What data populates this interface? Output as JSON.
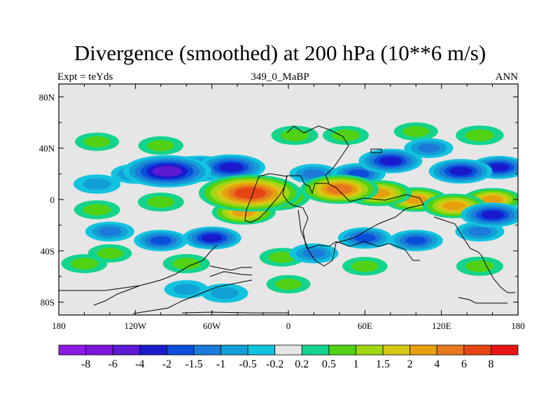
{
  "chart_data": {
    "type": "heatmap",
    "title": "Divergence (smoothed) at 200 hPa (10**6 m/s)",
    "left_subtitle": "Expt = teYds",
    "center_subtitle": "349_0_MaBP",
    "right_subtitle": "ANN",
    "x_ticks": [
      "180",
      "120W",
      "60W",
      "0",
      "60E",
      "120E",
      "180"
    ],
    "x_tick_values": [
      -180,
      -120,
      -60,
      0,
      60,
      120,
      180
    ],
    "y_ticks": [
      "80N",
      "40N",
      "0",
      "40S",
      "80S"
    ],
    "y_tick_values": [
      80,
      40,
      0,
      -40,
      -80
    ],
    "xlim": [
      -180,
      180
    ],
    "ylim": [
      -90,
      90
    ],
    "colorbar_labels": [
      "-8",
      "-6",
      "-4",
      "-2",
      "-1.5",
      "-1",
      "-0.5",
      "-0.2",
      "0.2",
      "0.5",
      "1",
      "1.5",
      "2",
      "4",
      "6",
      "8"
    ],
    "colorbar_colors": [
      "#8c1ae6",
      "#7d17dc",
      "#5c1ad2",
      "#1a1acd",
      "#0a4ed9",
      "#1c7bd8",
      "#129fd6",
      "#12c3df",
      "#e6e6e6",
      "#14d48c",
      "#52d214",
      "#a0d614",
      "#d6c814",
      "#e6a00e",
      "#e6781e",
      "#e64614",
      "#e61414"
    ],
    "blobs": [
      {
        "lon": -95,
        "lat": 22,
        "value": -5
      },
      {
        "lon": -70,
        "lat": 24,
        "value": -3
      },
      {
        "lon": -45,
        "lat": 25,
        "value": -3
      },
      {
        "lon": -120,
        "lat": 20,
        "value": -1
      },
      {
        "lon": -150,
        "lat": 12,
        "value": -0.8
      },
      {
        "lon": 80,
        "lat": 30,
        "value": -2.5
      },
      {
        "lon": 55,
        "lat": 20,
        "value": -1.5
      },
      {
        "lon": 20,
        "lat": 20,
        "value": -1
      },
      {
        "lon": 135,
        "lat": 22,
        "value": -2.5
      },
      {
        "lon": 165,
        "lat": 25,
        "value": -2
      },
      {
        "lon": 110,
        "lat": 40,
        "value": -1
      },
      {
        "lon": -100,
        "lat": 42,
        "value": 0.6
      },
      {
        "lon": -150,
        "lat": 45,
        "value": 0.5
      },
      {
        "lon": 5,
        "lat": 50,
        "value": 0.8
      },
      {
        "lon": 45,
        "lat": 50,
        "value": 0.7
      },
      {
        "lon": 150,
        "lat": 50,
        "value": 0.9
      },
      {
        "lon": 100,
        "lat": 53,
        "value": 0.5
      },
      {
        "lon": -30,
        "lat": 5,
        "value": 6.5
      },
      {
        "lon": -12,
        "lat": 2,
        "value": 3.5
      },
      {
        "lon": -35,
        "lat": -10,
        "value": 2.5
      },
      {
        "lon": 40,
        "lat": 8,
        "value": 4
      },
      {
        "lon": 70,
        "lat": 5,
        "value": 3
      },
      {
        "lon": 100,
        "lat": 0,
        "value": 2.5
      },
      {
        "lon": 130,
        "lat": -5,
        "value": 2.5
      },
      {
        "lon": 160,
        "lat": 0,
        "value": 2
      },
      {
        "lon": -100,
        "lat": -2,
        "value": 0.7
      },
      {
        "lon": -150,
        "lat": -8,
        "value": 0.7
      },
      {
        "lon": -60,
        "lat": -30,
        "value": -2
      },
      {
        "lon": -100,
        "lat": -32,
        "value": -1.5
      },
      {
        "lon": -140,
        "lat": -25,
        "value": -1
      },
      {
        "lon": 60,
        "lat": -30,
        "value": -1.5
      },
      {
        "lon": 100,
        "lat": -32,
        "value": -1.5
      },
      {
        "lon": 20,
        "lat": -42,
        "value": -1
      },
      {
        "lon": 160,
        "lat": -12,
        "value": -2.5
      },
      {
        "lon": 150,
        "lat": -25,
        "value": -1
      },
      {
        "lon": -160,
        "lat": -50,
        "value": 0.7
      },
      {
        "lon": -80,
        "lat": -50,
        "value": 0.8
      },
      {
        "lon": 60,
        "lat": -52,
        "value": 0.6
      },
      {
        "lon": 150,
        "lat": -52,
        "value": 0.8
      },
      {
        "lon": -140,
        "lat": -42,
        "value": 0.5
      },
      {
        "lon": -50,
        "lat": -73,
        "value": -0.8
      },
      {
        "lon": -80,
        "lat": -70,
        "value": -0.5
      },
      {
        "lon": 0,
        "lat": -66,
        "value": 0.5
      },
      {
        "lon": -5,
        "lat": -45,
        "value": 0.6
      }
    ]
  }
}
